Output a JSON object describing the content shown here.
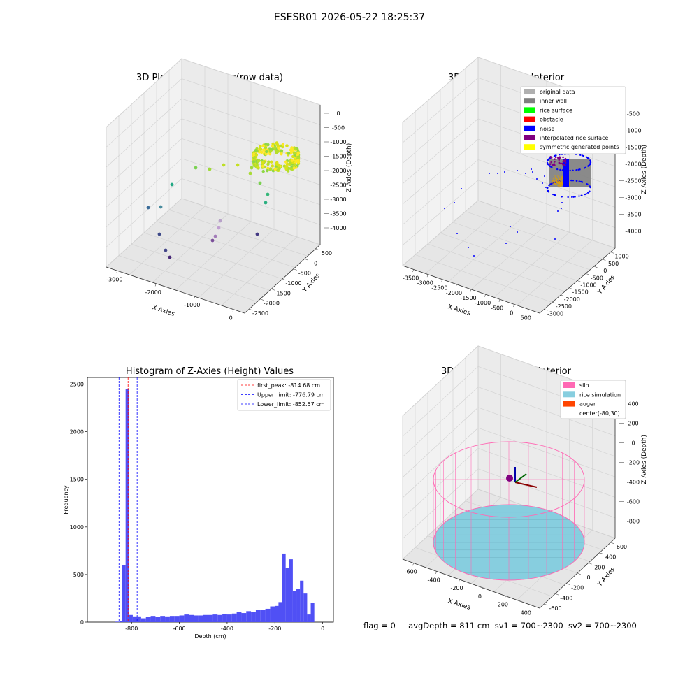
{
  "suptitle": "ESESR01 2026-05-22 18:25:37",
  "status_line": {
    "flag": "flag = 0",
    "avg_depth": "avgDepth = 811 cm",
    "sv1": "sv1 = 700~2300",
    "sv2": "sv2 = 700~2300"
  },
  "colors": {
    "original": "#b0b0b0",
    "inner_wall": "#808080",
    "rice_surface": "#00ff00",
    "obstacle": "#ff0000",
    "noise": "#0000ff",
    "interpolated": "#800080",
    "symmetric": "#ffff00",
    "hist_bar": "#5050f5",
    "silo": "#ff69b4",
    "rice_sim": "#87cedf",
    "auger": "#ff4500"
  },
  "chart_data": [
    {
      "type": "scatter",
      "title": "3D Plot of Silo Interior(row data)",
      "xlabel": "X Axies",
      "ylabel": "Y Axies",
      "zlabel": "Z Axies (Depth)",
      "xticks": [
        "-3000",
        "-2000",
        "-1000",
        "0"
      ],
      "yticks": [
        "500",
        "0",
        "-500",
        "-1000",
        "-1500",
        "-2000",
        "-2500"
      ],
      "zticks": [
        "0",
        "-500",
        "-1000",
        "-1500",
        "-2000",
        "-2500",
        "-3000",
        "-3500",
        "-4000"
      ],
      "colormap": "viridis (by depth)"
    },
    {
      "type": "scatter",
      "title": "3D classify of Silo Interior",
      "xlabel": "X Axies",
      "ylabel": "Y Axies",
      "zlabel": "Z Axies (Depth)",
      "xticks": [
        "-3500",
        "-3000",
        "-2500",
        "-2000",
        "-1500",
        "-1000",
        "-500",
        "0",
        "500"
      ],
      "yticks": [
        "1000",
        "500",
        "0",
        "-500",
        "-1000",
        "-1500",
        "-2000",
        "-2500",
        "-3000"
      ],
      "zticks": [
        "-500",
        "-1000",
        "-1500",
        "-2000",
        "-2500",
        "-3000",
        "-3500",
        "-4000"
      ],
      "legend": [
        "original data",
        "inner wall",
        "rice surface",
        "obstacle",
        "noise",
        "interpolated rice surface",
        "symmetric generated points"
      ],
      "legend_placement": "top-right"
    },
    {
      "type": "bar",
      "title": "Histogram of Z-Axies (Height) Values",
      "xlabel": "Depth (cm)",
      "ylabel": "Frequency",
      "xlim": [
        -985,
        45
      ],
      "ylim": [
        0,
        2570
      ],
      "xticks": [
        -800,
        -600,
        -400,
        -200,
        0
      ],
      "yticks": [
        0,
        500,
        1000,
        1500,
        2000,
        2500
      ],
      "bin_width": 20,
      "bins": [
        {
          "x0": -870,
          "v": 5
        },
        {
          "x0": -850,
          "v": 8
        },
        {
          "x0": -840,
          "v": 600
        },
        {
          "x0": -825,
          "v": 2450
        },
        {
          "x0": -810,
          "v": 75
        },
        {
          "x0": -795,
          "v": 60
        },
        {
          "x0": -780,
          "v": 60
        },
        {
          "x0": -760,
          "v": 40
        },
        {
          "x0": -740,
          "v": 55
        },
        {
          "x0": -720,
          "v": 65
        },
        {
          "x0": -700,
          "v": 55
        },
        {
          "x0": -680,
          "v": 65
        },
        {
          "x0": -660,
          "v": 60
        },
        {
          "x0": -640,
          "v": 65
        },
        {
          "x0": -620,
          "v": 65
        },
        {
          "x0": -600,
          "v": 70
        },
        {
          "x0": -580,
          "v": 80
        },
        {
          "x0": -560,
          "v": 75
        },
        {
          "x0": -540,
          "v": 70
        },
        {
          "x0": -520,
          "v": 70
        },
        {
          "x0": -500,
          "v": 75
        },
        {
          "x0": -480,
          "v": 75
        },
        {
          "x0": -460,
          "v": 80
        },
        {
          "x0": -440,
          "v": 75
        },
        {
          "x0": -420,
          "v": 85
        },
        {
          "x0": -400,
          "v": 80
        },
        {
          "x0": -380,
          "v": 90
        },
        {
          "x0": -360,
          "v": 105
        },
        {
          "x0": -340,
          "v": 95
        },
        {
          "x0": -320,
          "v": 115
        },
        {
          "x0": -300,
          "v": 110
        },
        {
          "x0": -280,
          "v": 130
        },
        {
          "x0": -260,
          "v": 125
        },
        {
          "x0": -240,
          "v": 140
        },
        {
          "x0": -220,
          "v": 165
        },
        {
          "x0": -200,
          "v": 170
        },
        {
          "x0": -185,
          "v": 210
        },
        {
          "x0": -170,
          "v": 720
        },
        {
          "x0": -155,
          "v": 570
        },
        {
          "x0": -140,
          "v": 660
        },
        {
          "x0": -125,
          "v": 330
        },
        {
          "x0": -110,
          "v": 345
        },
        {
          "x0": -95,
          "v": 435
        },
        {
          "x0": -80,
          "v": 300
        },
        {
          "x0": -65,
          "v": 80
        },
        {
          "x0": -50,
          "v": 200
        }
      ],
      "vlines": [
        {
          "name": "first_peak: -814.68 cm",
          "x": -814.68,
          "color": "#ff0000"
        },
        {
          "name": "Upper_limit: -776.79 cm",
          "x": -776.79,
          "color": "#0000ff"
        },
        {
          "name": "Lower_limit: -852.57 cm",
          "x": -852.57,
          "color": "#0000ff"
        }
      ],
      "legend_placement": "top-right"
    },
    {
      "type": "scatter",
      "title": "3D simulation of Silo Interior",
      "xlabel": "X Axies",
      "ylabel": "Y Axies",
      "zlabel": "Z Axies (Depth)",
      "xticks": [
        "-600",
        "-400",
        "-200",
        "0",
        "200",
        "400"
      ],
      "yticks": [
        "600",
        "400",
        "200",
        "0",
        "-200",
        "-400",
        "-600"
      ],
      "zticks": [
        "400",
        "200",
        "0",
        "-200",
        "-400",
        "-600",
        "-800"
      ],
      "legend": [
        "silo",
        "rice simulation",
        "auger",
        "center(-80,30)"
      ],
      "legend_placement": "top-right"
    }
  ]
}
